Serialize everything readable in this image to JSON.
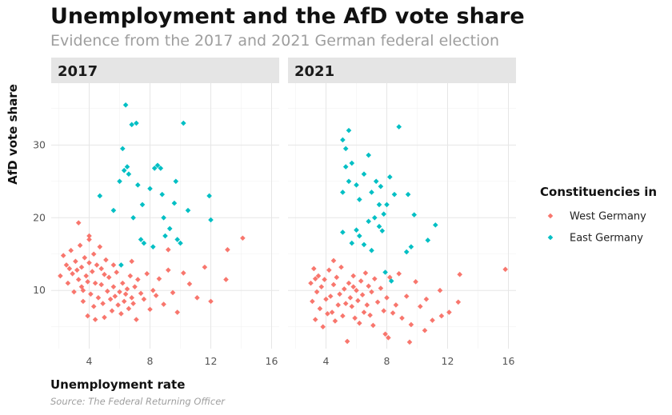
{
  "chart_data": {
    "type": "scatter",
    "title": "Unemployment and the AfD vote share",
    "subtitle": "Evidence from the 2017 and 2021 German federal election",
    "xlabel": "Unemployment rate",
    "ylabel": "AfD vote share",
    "caption": "Source: The Federal Returning Officer",
    "xlim": [
      1.5,
      16.5
    ],
    "ylim": [
      2,
      38.5
    ],
    "x_ticks": [
      4,
      8,
      12,
      16
    ],
    "y_ticks": [
      10,
      20,
      30
    ],
    "grid": true,
    "legend": {
      "title": "Constituencies in",
      "placement": "right",
      "entries": [
        {
          "name": "West Germany",
          "color": "#f8766d"
        },
        {
          "name": "East Germany",
          "color": "#00bfc4"
        }
      ]
    },
    "panels": [
      {
        "label": "2017",
        "series": [
          {
            "name": "West Germany",
            "points": [
              [
                2.1,
                12
              ],
              [
                2.3,
                14.8
              ],
              [
                2.5,
                13.5
              ],
              [
                2.6,
                11
              ],
              [
                2.8,
                15.5
              ],
              [
                2.9,
                12.3
              ],
              [
                3,
                9.8
              ],
              [
                3.1,
                14
              ],
              [
                3.2,
                12.8
              ],
              [
                3.3,
                11.5
              ],
              [
                3.4,
                16.2
              ],
              [
                3.5,
                13.2
              ],
              [
                3.5,
                10.5
              ],
              [
                3.6,
                8.5
              ],
              [
                3.7,
                14.5
              ],
              [
                3.8,
                12
              ],
              [
                3.9,
                6.5
              ],
              [
                3.9,
                11.2
              ],
              [
                4,
                17.5
              ],
              [
                4,
                13.8
              ],
              [
                4.1,
                9.5
              ],
              [
                4.2,
                12.6
              ],
              [
                4.3,
                15
              ],
              [
                4.3,
                7.8
              ],
              [
                4.4,
                11
              ],
              [
                4.5,
                13.5
              ],
              [
                4.6,
                9
              ],
              [
                4.7,
                16
              ],
              [
                4.8,
                10.8
              ],
              [
                4.9,
                8.2
              ],
              [
                5,
                12.2
              ],
              [
                5,
                6.3
              ],
              [
                5.1,
                14.2
              ],
              [
                5.2,
                9.9
              ],
              [
                5.3,
                11.8
              ],
              [
                5.4,
                8.8
              ],
              [
                5.5,
                7.2
              ],
              [
                5.6,
                10.5
              ],
              [
                5.7,
                9.2
              ],
              [
                5.8,
                12.5
              ],
              [
                5.9,
                8
              ],
              [
                6,
                9.8
              ],
              [
                6.1,
                6.8
              ],
              [
                6.2,
                11
              ],
              [
                6.3,
                8.5
              ],
              [
                6.4,
                9.5
              ],
              [
                6.5,
                10.2
              ],
              [
                6.6,
                7.5
              ],
              [
                6.7,
                12
              ],
              [
                6.8,
                9
              ],
              [
                6.9,
                8.2
              ],
              [
                7,
                10.5
              ],
              [
                7.1,
                6
              ],
              [
                7.2,
                11.5
              ],
              [
                7.4,
                9.6
              ],
              [
                7.6,
                8.8
              ],
              [
                7.8,
                12.3
              ],
              [
                8,
                7.4
              ],
              [
                8.2,
                10
              ],
              [
                8.4,
                9.3
              ],
              [
                8.6,
                11.6
              ],
              [
                8.9,
                8.1
              ],
              [
                9.2,
                12.8
              ],
              [
                9.5,
                9.7
              ],
              [
                9.8,
                7
              ],
              [
                10.2,
                12.4
              ],
              [
                10.6,
                10.9
              ],
              [
                11.1,
                9
              ],
              [
                11.6,
                13.2
              ],
              [
                12,
                8.5
              ],
              [
                13,
                11.5
              ],
              [
                13.1,
                15.6
              ],
              [
                14.1,
                17.2
              ],
              [
                3.3,
                19.3
              ],
              [
                4,
                17
              ],
              [
                2.7,
                13
              ],
              [
                3.6,
                10
              ],
              [
                4.8,
                13
              ],
              [
                5.6,
                13.5
              ],
              [
                6.8,
                14
              ],
              [
                9.2,
                15.6
              ],
              [
                4.4,
                6
              ]
            ]
          },
          {
            "name": "East Germany",
            "points": [
              [
                4.7,
                23
              ],
              [
                5.6,
                21
              ],
              [
                6,
                25
              ],
              [
                6.2,
                29.5
              ],
              [
                6.3,
                26.5
              ],
              [
                6.4,
                35.5
              ],
              [
                6.5,
                27
              ],
              [
                6.6,
                26
              ],
              [
                6.8,
                32.8
              ],
              [
                6.9,
                20
              ],
              [
                7.1,
                33
              ],
              [
                7.2,
                24.5
              ],
              [
                7.4,
                17
              ],
              [
                7.6,
                16.5
              ],
              [
                8,
                24
              ],
              [
                8.2,
                16
              ],
              [
                8.3,
                26.8
              ],
              [
                8.5,
                27.2
              ],
              [
                8.7,
                26.8
              ],
              [
                8.9,
                20
              ],
              [
                9,
                17.5
              ],
              [
                9.3,
                18.5
              ],
              [
                9.6,
                22
              ],
              [
                9.8,
                17
              ],
              [
                10,
                16.5
              ],
              [
                10.2,
                33
              ],
              [
                10.5,
                21
              ],
              [
                11.9,
                23
              ],
              [
                12,
                19.7
              ],
              [
                6.1,
                13.5
              ],
              [
                7.5,
                21.8
              ],
              [
                8.8,
                23.2
              ],
              [
                9.7,
                25
              ]
            ]
          }
        ]
      },
      {
        "label": "2021",
        "series": [
          {
            "name": "West Germany",
            "points": [
              [
                3,
                11
              ],
              [
                3.1,
                8.5
              ],
              [
                3.2,
                13
              ],
              [
                3.3,
                6
              ],
              [
                3.4,
                9.8
              ],
              [
                3.5,
                12
              ],
              [
                3.6,
                7.5
              ],
              [
                3.7,
                10.5
              ],
              [
                3.8,
                5
              ],
              [
                3.9,
                11.5
              ],
              [
                4,
                8.8
              ],
              [
                4.1,
                6.8
              ],
              [
                4.2,
                12.8
              ],
              [
                4.3,
                9.2
              ],
              [
                4.4,
                7
              ],
              [
                4.5,
                10.8
              ],
              [
                4.6,
                5.8
              ],
              [
                4.7,
                11.8
              ],
              [
                4.8,
                8
              ],
              [
                4.9,
                9.5
              ],
              [
                5,
                13.2
              ],
              [
                5.1,
                6.5
              ],
              [
                5.2,
                10.2
              ],
              [
                5.3,
                8.2
              ],
              [
                5.4,
                3
              ],
              [
                5.5,
                11
              ],
              [
                5.6,
                9
              ],
              [
                5.7,
                7.8
              ],
              [
                5.8,
                12
              ],
              [
                5.9,
                6.2
              ],
              [
                6,
                10
              ],
              [
                6.1,
                8.6
              ],
              [
                6.2,
                5.5
              ],
              [
                6.3,
                11.3
              ],
              [
                6.4,
                9.4
              ],
              [
                6.5,
                7
              ],
              [
                6.6,
                12.4
              ],
              [
                6.7,
                8
              ],
              [
                6.8,
                10.6
              ],
              [
                6.9,
                6.6
              ],
              [
                7,
                9.8
              ],
              [
                7.1,
                5.2
              ],
              [
                7.2,
                11.6
              ],
              [
                7.4,
                8.4
              ],
              [
                7.6,
                10.3
              ],
              [
                7.8,
                7.2
              ],
              [
                7.9,
                4
              ],
              [
                8,
                9
              ],
              [
                8.1,
                3.5
              ],
              [
                8.2,
                11.8
              ],
              [
                8.4,
                6.9
              ],
              [
                8.6,
                8
              ],
              [
                8.8,
                12.3
              ],
              [
                9,
                6.2
              ],
              [
                9.3,
                9.2
              ],
              [
                9.6,
                5.3
              ],
              [
                9.9,
                11.2
              ],
              [
                10.2,
                7.8
              ],
              [
                10.6,
                8.8
              ],
              [
                11,
                5.9
              ],
              [
                11.5,
                10
              ],
              [
                12.1,
                7
              ],
              [
                12.7,
                8.4
              ],
              [
                12.8,
                12.2
              ],
              [
                15.8,
                12.9
              ],
              [
                9.5,
                2.9
              ],
              [
                10.5,
                4.5
              ],
              [
                11.6,
                6.5
              ],
              [
                4.5,
                14.1
              ],
              [
                3.3,
                11.6
              ],
              [
                5.8,
                10.5
              ]
            ]
          },
          {
            "name": "East Germany",
            "points": [
              [
                5.1,
                30.7
              ],
              [
                5.3,
                29.5
              ],
              [
                5.5,
                32
              ],
              [
                5.3,
                27
              ],
              [
                5.7,
                27.5
              ],
              [
                5.5,
                25
              ],
              [
                5.1,
                23.5
              ],
              [
                6,
                24.5
              ],
              [
                6.2,
                22.5
              ],
              [
                6.5,
                26
              ],
              [
                6.8,
                28.6
              ],
              [
                7,
                23.5
              ],
              [
                7.3,
                25
              ],
              [
                7.5,
                21.8
              ],
              [
                7.6,
                24.3
              ],
              [
                7.2,
                20
              ],
              [
                6.8,
                19.5
              ],
              [
                6.2,
                17.5
              ],
              [
                6.5,
                16.3
              ],
              [
                7,
                15.5
              ],
              [
                7.8,
                20.5
              ],
              [
                8,
                21.8
              ],
              [
                8.2,
                25.6
              ],
              [
                8.5,
                23.2
              ],
              [
                8.8,
                32.5
              ],
              [
                9.4,
                23.2
              ],
              [
                9.6,
                16
              ],
              [
                9.8,
                20.4
              ],
              [
                10.7,
                16.9
              ],
              [
                11.2,
                19
              ],
              [
                5.1,
                18
              ],
              [
                5.7,
                16.5
              ],
              [
                6,
                18.3
              ],
              [
                7.9,
                12.5
              ],
              [
                8.3,
                11.3
              ],
              [
                9.3,
                15.3
              ],
              [
                7.5,
                18.8
              ],
              [
                7.7,
                18.2
              ]
            ]
          }
        ]
      }
    ]
  }
}
